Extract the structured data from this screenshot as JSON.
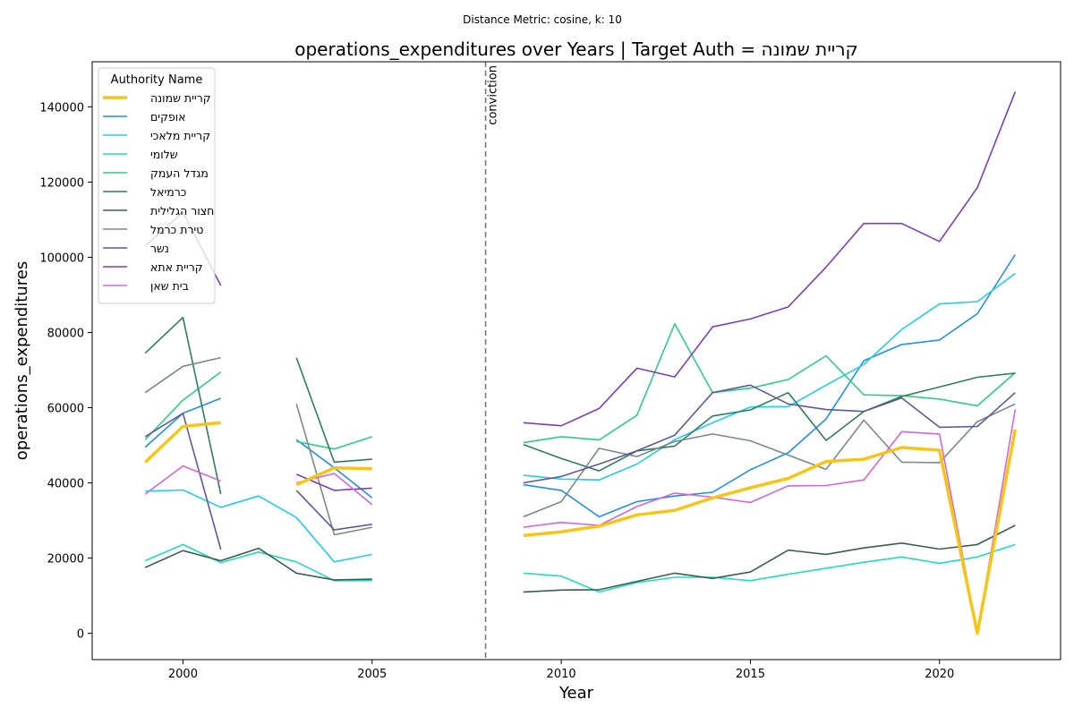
{
  "chart_data": {
    "type": "line",
    "suptitle": "Distance Metric: cosine, k: 10",
    "title": "operations_expenditures over Years | Target Auth = קריית שמונה",
    "xlabel": "Year",
    "ylabel": "operations_expenditures",
    "xlim": [
      1997.6,
      2023.2
    ],
    "ylim": [
      -7000,
      152000
    ],
    "x_ticks": [
      2000,
      2005,
      2010,
      2015,
      2020
    ],
    "y_ticks": [
      0,
      20000,
      40000,
      60000,
      80000,
      100000,
      120000,
      140000
    ],
    "grid": false,
    "legend_title": "Authority Name",
    "legend_position": "upper left",
    "annotation": {
      "x": 2008,
      "label": "conviction",
      "style": "dashed"
    },
    "series": [
      {
        "name": "קריית שמונה",
        "color": "#f5c518",
        "target": true,
        "points": [
          [
            1999,
            45500
          ],
          [
            2000,
            55000
          ],
          [
            2001,
            56000
          ],
          [
            2003,
            39500
          ],
          [
            2004,
            44000
          ],
          [
            2005,
            43800
          ],
          [
            2009,
            26000
          ],
          [
            2010,
            27000
          ],
          [
            2011,
            28500
          ],
          [
            2012,
            31500
          ],
          [
            2013,
            32700
          ],
          [
            2014,
            36000
          ],
          [
            2015,
            38700
          ],
          [
            2016,
            41200
          ],
          [
            2017,
            45700
          ],
          [
            2018,
            46300
          ],
          [
            2019,
            49400
          ],
          [
            2020,
            48700
          ],
          [
            2021,
            0
          ],
          [
            2022,
            54200
          ]
        ]
      },
      {
        "name": "אופקים",
        "color": "#1f8fe6",
        "points": [
          [
            1999,
            49500
          ],
          [
            2000,
            58500
          ],
          [
            2001,
            62500
          ],
          [
            2003,
            51500
          ],
          [
            2004,
            44000
          ],
          [
            2005,
            36000
          ],
          [
            2009,
            39500
          ],
          [
            2010,
            38000
          ],
          [
            2011,
            31000
          ],
          [
            2012,
            35000
          ],
          [
            2013,
            36500
          ],
          [
            2014,
            37500
          ],
          [
            2015,
            43500
          ],
          [
            2016,
            48000
          ],
          [
            2017,
            57000
          ],
          [
            2018,
            72500
          ],
          [
            2019,
            76800
          ],
          [
            2020,
            78000
          ],
          [
            2021,
            85000
          ],
          [
            2022,
            100700
          ]
        ]
      },
      {
        "name": "קריית מלאכי",
        "color": "#22ccee",
        "points": [
          [
            1999,
            37800
          ],
          [
            2000,
            38100
          ],
          [
            2001,
            33500
          ],
          [
            2002,
            36500
          ],
          [
            2003,
            30800
          ],
          [
            2004,
            19000
          ],
          [
            2005,
            21000
          ],
          [
            2009,
            42000
          ],
          [
            2010,
            41000
          ],
          [
            2011,
            40800
          ],
          [
            2012,
            45000
          ],
          [
            2013,
            51500
          ],
          [
            2014,
            56000
          ],
          [
            2015,
            60200
          ],
          [
            2016,
            60300
          ],
          [
            2017,
            66000
          ],
          [
            2018,
            71500
          ],
          [
            2019,
            80800
          ],
          [
            2020,
            87600
          ],
          [
            2021,
            88200
          ],
          [
            2022,
            95700
          ]
        ]
      },
      {
        "name": "שלומי",
        "color": "#20dcc0",
        "points": [
          [
            1999,
            19300
          ],
          [
            2000,
            23600
          ],
          [
            2001,
            18800
          ],
          [
            2002,
            21600
          ],
          [
            2003,
            19000
          ],
          [
            2004,
            14000
          ],
          [
            2005,
            14000
          ],
          [
            2009,
            16000
          ],
          [
            2010,
            15200
          ],
          [
            2011,
            11000
          ],
          [
            2012,
            13500
          ],
          [
            2013,
            14900
          ],
          [
            2014,
            14900
          ],
          [
            2015,
            14000
          ],
          [
            2016,
            15700
          ],
          [
            2017,
            17300
          ],
          [
            2018,
            18900
          ],
          [
            2019,
            20300
          ],
          [
            2020,
            18600
          ],
          [
            2021,
            20300
          ],
          [
            2022,
            23600
          ]
        ]
      },
      {
        "name": "מגדל העמק",
        "color": "#2ecc8a",
        "points": [
          [
            1999,
            51500
          ],
          [
            2000,
            62000
          ],
          [
            2001,
            69500
          ],
          [
            2003,
            51000
          ],
          [
            2004,
            49000
          ],
          [
            2005,
            52300
          ],
          [
            2009,
            50700
          ],
          [
            2010,
            52300
          ],
          [
            2011,
            51400
          ],
          [
            2012,
            58000
          ],
          [
            2013,
            82300
          ],
          [
            2014,
            64000
          ],
          [
            2015,
            65200
          ],
          [
            2016,
            67500
          ],
          [
            2017,
            73800
          ],
          [
            2018,
            63400
          ],
          [
            2019,
            63200
          ],
          [
            2020,
            62300
          ],
          [
            2021,
            60500
          ],
          [
            2022,
            69300
          ]
        ]
      },
      {
        "name": "כרמיאל",
        "color": "#2e7d5b",
        "points": [
          [
            1999,
            74500
          ],
          [
            2000,
            84000
          ],
          [
            2001,
            37000
          ],
          [
            2003,
            73300
          ],
          [
            2004,
            45500
          ],
          [
            2005,
            46300
          ],
          [
            2009,
            50200
          ],
          [
            2010,
            46500
          ],
          [
            2011,
            43200
          ],
          [
            2012,
            48500
          ],
          [
            2013,
            49800
          ],
          [
            2014,
            57800
          ],
          [
            2015,
            59400
          ],
          [
            2016,
            64000
          ],
          [
            2017,
            51300
          ],
          [
            2018,
            59000
          ],
          [
            2019,
            63000
          ],
          [
            2020,
            65500
          ],
          [
            2021,
            68100
          ],
          [
            2022,
            69200
          ]
        ]
      },
      {
        "name": "חצור הגלילית",
        "color": "#3a5e50",
        "points": [
          [
            1999,
            17500
          ],
          [
            2000,
            22000
          ],
          [
            2001,
            19300
          ],
          [
            2002,
            22600
          ],
          [
            2003,
            16000
          ],
          [
            2004,
            14200
          ],
          [
            2005,
            14400
          ],
          [
            2009,
            11000
          ],
          [
            2010,
            11500
          ],
          [
            2011,
            11600
          ],
          [
            2012,
            13800
          ],
          [
            2013,
            16000
          ],
          [
            2014,
            14600
          ],
          [
            2015,
            16300
          ],
          [
            2016,
            22100
          ],
          [
            2017,
            21000
          ],
          [
            2018,
            22700
          ],
          [
            2019,
            24000
          ],
          [
            2020,
            22400
          ],
          [
            2021,
            23600
          ],
          [
            2022,
            28700
          ]
        ]
      },
      {
        "name": "טירת כרמל",
        "color": "#7a8a85",
        "points": [
          [
            1999,
            64000
          ],
          [
            2000,
            71000
          ],
          [
            2001,
            73300
          ],
          [
            2003,
            61000
          ],
          [
            2004,
            26200
          ],
          [
            2005,
            28200
          ],
          [
            2009,
            31000
          ],
          [
            2010,
            35000
          ],
          [
            2011,
            49200
          ],
          [
            2012,
            47000
          ],
          [
            2013,
            51000
          ],
          [
            2014,
            53000
          ],
          [
            2015,
            51200
          ],
          [
            2016,
            47400
          ],
          [
            2017,
            43600
          ],
          [
            2018,
            56700
          ],
          [
            2019,
            45500
          ],
          [
            2020,
            45400
          ],
          [
            2021,
            56300
          ],
          [
            2022,
            61000
          ]
        ]
      },
      {
        "name": "נשר",
        "color": "#5a5a9a",
        "points": [
          [
            1999,
            52300
          ],
          [
            2000,
            58500
          ],
          [
            2001,
            22300
          ],
          [
            2003,
            38000
          ],
          [
            2004,
            27500
          ],
          [
            2005,
            29000
          ],
          [
            2009,
            40000
          ],
          [
            2010,
            41700
          ],
          [
            2011,
            45000
          ],
          [
            2012,
            48500
          ],
          [
            2013,
            52700
          ],
          [
            2014,
            64000
          ],
          [
            2015,
            66000
          ],
          [
            2016,
            61000
          ],
          [
            2017,
            59500
          ],
          [
            2018,
            59000
          ],
          [
            2019,
            62600
          ],
          [
            2020,
            54800
          ],
          [
            2021,
            55000
          ],
          [
            2022,
            64000
          ]
        ]
      },
      {
        "name": "קריית אתא",
        "color": "#7b3fb5",
        "points": [
          [
            1999,
            103000
          ],
          [
            2000,
            112000
          ],
          [
            2001,
            92500
          ],
          [
            2003,
            42300
          ],
          [
            2004,
            38000
          ],
          [
            2005,
            38600
          ],
          [
            2009,
            56000
          ],
          [
            2010,
            55200
          ],
          [
            2011,
            59800
          ],
          [
            2012,
            70500
          ],
          [
            2013,
            68200
          ],
          [
            2014,
            81500
          ],
          [
            2015,
            83600
          ],
          [
            2016,
            86800
          ],
          [
            2017,
            97400
          ],
          [
            2018,
            109000
          ],
          [
            2019,
            109000
          ],
          [
            2020,
            104200
          ],
          [
            2021,
            118500
          ],
          [
            2022,
            144000
          ]
        ]
      },
      {
        "name": "בית שאן",
        "color": "#d068d6",
        "points": [
          [
            1999,
            37000
          ],
          [
            2000,
            44500
          ],
          [
            2001,
            40500
          ],
          [
            2003,
            40000
          ],
          [
            2004,
            42500
          ],
          [
            2005,
            34200
          ],
          [
            2009,
            28200
          ],
          [
            2010,
            29500
          ],
          [
            2011,
            28700
          ],
          [
            2012,
            33700
          ],
          [
            2013,
            37300
          ],
          [
            2014,
            36200
          ],
          [
            2015,
            34800
          ],
          [
            2016,
            39200
          ],
          [
            2017,
            39300
          ],
          [
            2018,
            40800
          ],
          [
            2019,
            53600
          ],
          [
            2020,
            53000
          ],
          [
            2021,
            0
          ],
          [
            2022,
            59500
          ]
        ]
      }
    ]
  }
}
